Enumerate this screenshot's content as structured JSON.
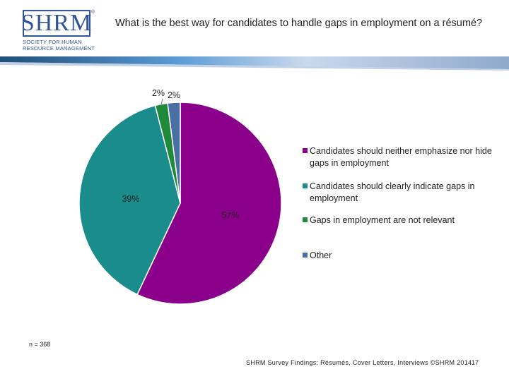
{
  "logo": {
    "mark": "SHRM",
    "reg": "®",
    "subtitle": "Society for Human Resource Management"
  },
  "question": "What is the best way for candidates to handle gaps in employment on a résumé?",
  "chart_data": {
    "type": "pie",
    "title": "What is the best way for candidates to handle gaps in employment on a résumé?",
    "slices": [
      {
        "label": "Candidates should neither emphasize nor hide gaps in employment",
        "value": 57,
        "display": "57%",
        "color": "#8b008b"
      },
      {
        "label": "Candidates should clearly indicate gaps in employment",
        "value": 39,
        "display": "39%",
        "color": "#1a8c8c"
      },
      {
        "label": "Gaps in employment are not relevant",
        "value": 2,
        "display": "2%",
        "color": "#1e8a3a"
      },
      {
        "label": "Other",
        "value": 2,
        "display": "2%",
        "color": "#4a6fa5"
      }
    ],
    "legend_position": "right"
  },
  "note": "n = 368",
  "footer": "SHRM Survey Findings: Résumés, Cover Letters, Interviews ©SHRM 2014",
  "page_number": "17"
}
